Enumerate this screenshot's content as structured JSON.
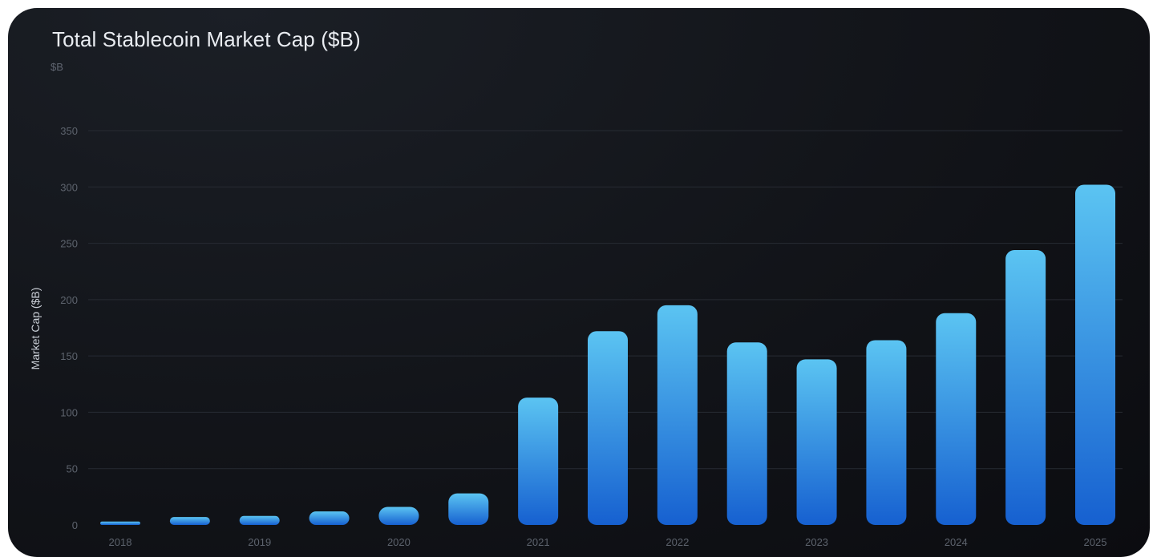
{
  "chart_data": {
    "type": "bar",
    "title": "Total Stablecoin Market Cap ($B)",
    "unit_label": "$B",
    "ylabel": "Market Cap ($B)",
    "xlabel": "",
    "ylim": [
      0,
      350
    ],
    "yticks": [
      0,
      50,
      100,
      150,
      200,
      250,
      300,
      350
    ],
    "grid": true,
    "x_tick_labels": [
      "2018",
      "2019",
      "2020",
      "2021",
      "2022",
      "2023",
      "2024",
      "2025"
    ],
    "values": [
      3,
      7,
      8,
      12,
      16,
      28,
      113,
      172,
      195,
      162,
      147,
      164,
      188,
      244,
      302
    ],
    "colors": {
      "bar_top": "#5bc4f2",
      "bar_bottom": "#1660d0",
      "grid": "#272b33"
    }
  }
}
